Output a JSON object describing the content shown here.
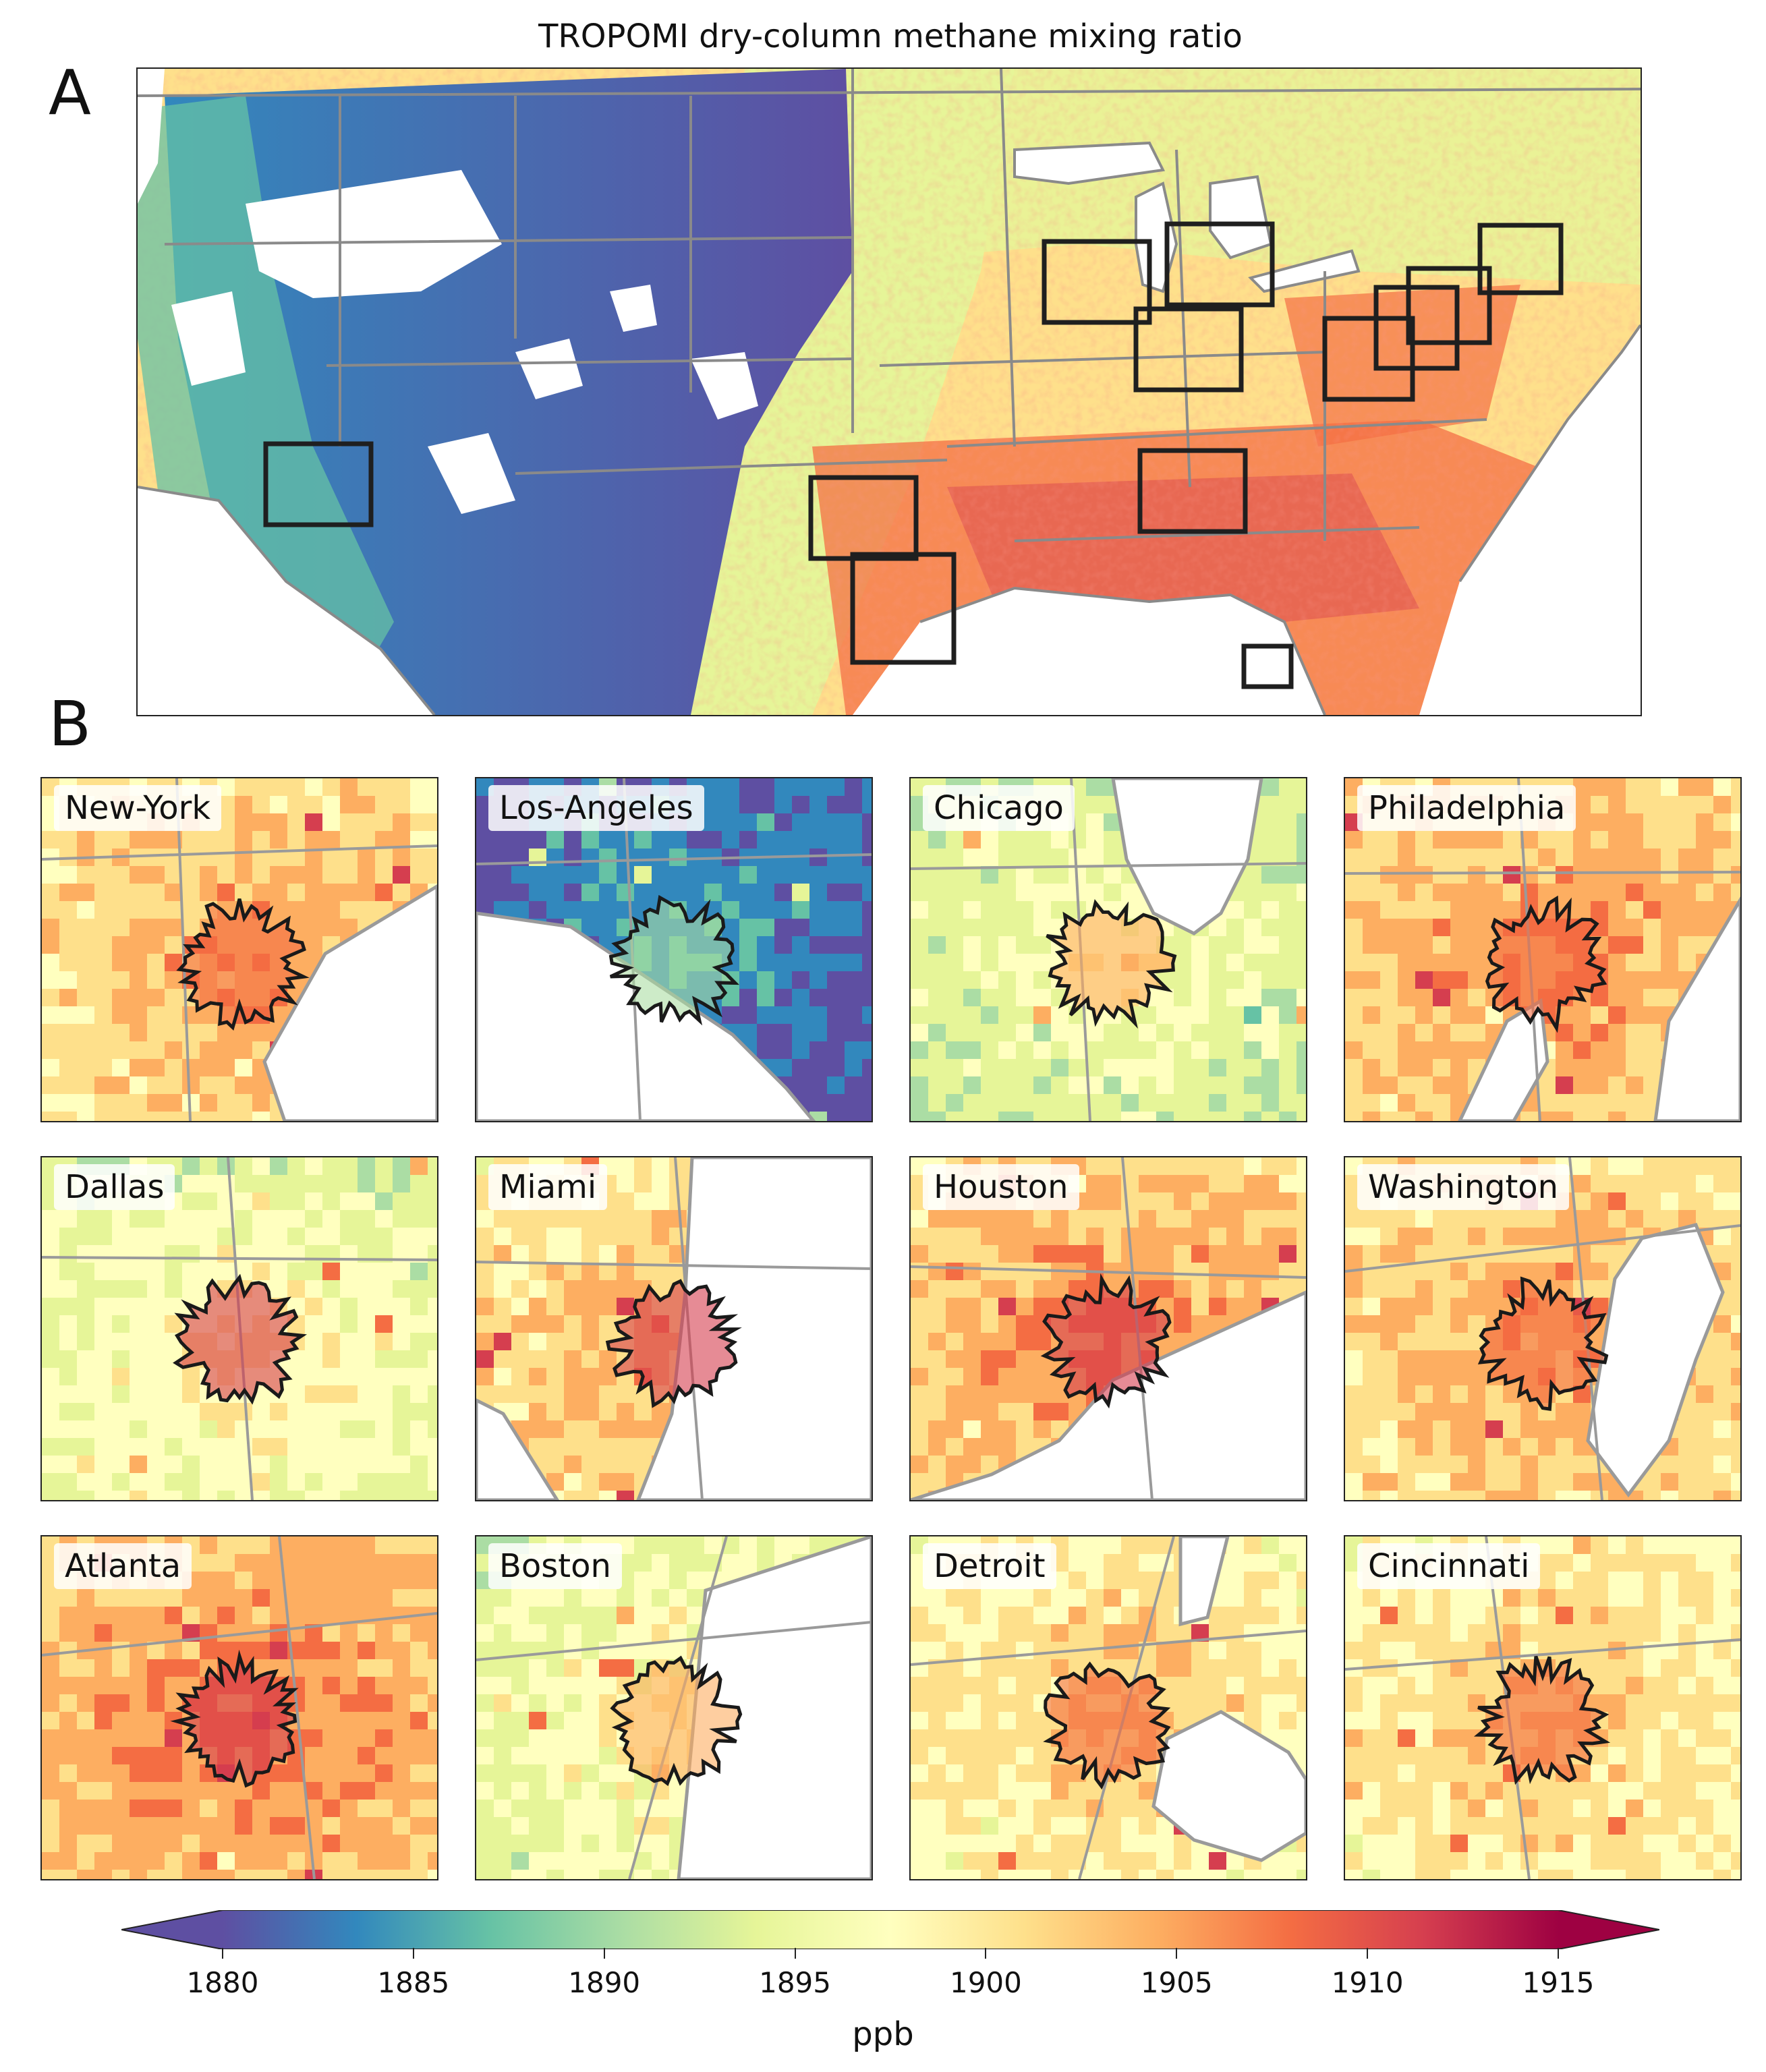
{
  "title": "TROPOMI dry-column methane mixing ratio",
  "panel_labels": {
    "a": "A",
    "b": "B"
  },
  "colorbar": {
    "unit": "ppb",
    "ticks": [
      "1880",
      "1885",
      "1890",
      "1895",
      "1900",
      "1905",
      "1910",
      "1915"
    ],
    "range": [
      1880,
      1915
    ],
    "colormap": "Spectral_r",
    "colors": [
      "#5e4fa2",
      "#3288bd",
      "#66c2a5",
      "#abdda4",
      "#e6f598",
      "#ffffbf",
      "#fee08b",
      "#fdae61",
      "#f46d43",
      "#d53e4f",
      "#9e0142"
    ],
    "extend": "both"
  },
  "cities": [
    {
      "name": "New-York"
    },
    {
      "name": "Los-Angeles"
    },
    {
      "name": "Chicago"
    },
    {
      "name": "Philadelphia"
    },
    {
      "name": "Dallas"
    },
    {
      "name": "Miami"
    },
    {
      "name": "Houston"
    },
    {
      "name": "Washington"
    },
    {
      "name": "Atlanta"
    },
    {
      "name": "Boston"
    },
    {
      "name": "Detroit"
    },
    {
      "name": "Cincinnati"
    }
  ],
  "colors": {
    "state_border": "#8a8a8a",
    "city_outline": "#1a1a1a",
    "frame": "#222222"
  }
}
